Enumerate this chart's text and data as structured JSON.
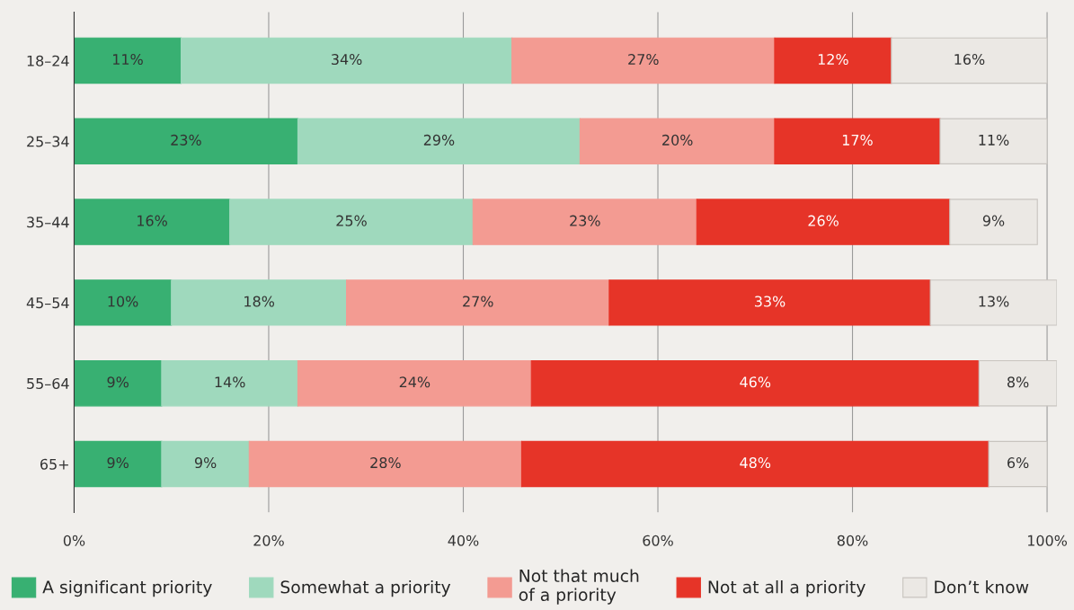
{
  "chart_data": {
    "type": "bar",
    "orientation": "horizontal",
    "stacked": true,
    "categories": [
      "18–24",
      "25–34",
      "35–44",
      "45–54",
      "55–64",
      "65+"
    ],
    "series": [
      {
        "name": "A significant priority",
        "color": "#38b072",
        "values": [
          11,
          23,
          16,
          10,
          9,
          9
        ],
        "value_labels": [
          "11%",
          "23%",
          "16%",
          "10%",
          "9%",
          "9%"
        ]
      },
      {
        "name": "Somewhat a priority",
        "color": "#9fd9bd",
        "values": [
          34,
          29,
          25,
          18,
          14,
          9
        ],
        "value_labels": [
          "34%",
          "29%",
          "25%",
          "18%",
          "14%",
          "9%"
        ]
      },
      {
        "name": "Not that much\nof a priority",
        "color": "#f39b92",
        "values": [
          27,
          20,
          23,
          27,
          24,
          28
        ],
        "value_labels": [
          "27%",
          "20%",
          "23%",
          "27%",
          "24%",
          "28%"
        ]
      },
      {
        "name": "Not at all a priority",
        "color": "#e63428",
        "values": [
          12,
          17,
          26,
          33,
          46,
          48
        ],
        "value_labels": [
          "12%",
          "17%",
          "26%",
          "33%",
          "46%",
          "48%"
        ]
      },
      {
        "name": "Don’t know",
        "color": "#ebe8e4",
        "values": [
          16,
          11,
          9,
          13,
          8,
          6
        ],
        "value_labels": [
          "16%",
          "11%",
          "9%",
          "13%",
          "8%",
          "6%"
        ]
      }
    ],
    "xlim": [
      0,
      101
    ],
    "xticks": [
      {
        "value": 0,
        "label": "0%"
      },
      {
        "value": 20,
        "label": "20%"
      },
      {
        "value": 40,
        "label": "40%"
      },
      {
        "value": 60,
        "label": "60%"
      },
      {
        "value": 80,
        "label": "80%"
      },
      {
        "value": 100,
        "label": "100%"
      }
    ],
    "grid": "x",
    "legend": "bottom"
  }
}
